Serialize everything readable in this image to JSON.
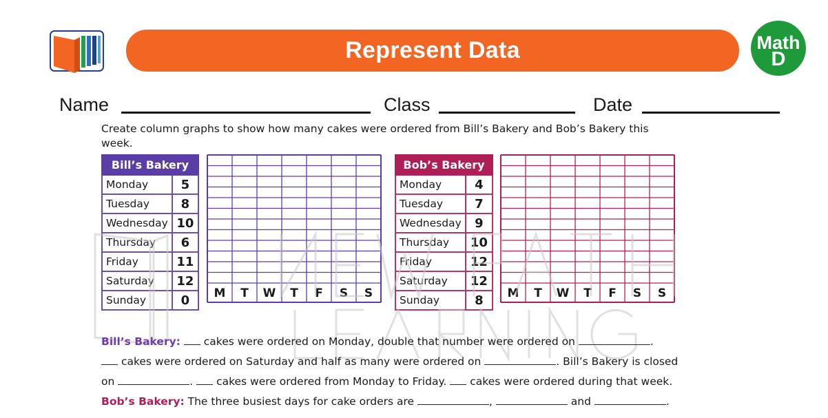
{
  "header": {
    "title": "Represent Data",
    "badge_line1": "Math",
    "badge_line2": "D"
  },
  "info": {
    "name_label": "Name",
    "class_label": "Class",
    "date_label": "Date"
  },
  "instructions": "Create column graphs to show how many cakes were ordered from Bill’s Bakery and Bob’s Bakery this week.",
  "bill": {
    "title": "Bill’s Bakery",
    "rows": [
      {
        "day": "Monday",
        "value": "5"
      },
      {
        "day": "Tuesday",
        "value": "8"
      },
      {
        "day": "Wednesday",
        "value": "10"
      },
      {
        "day": "Thursday",
        "value": "6"
      },
      {
        "day": "Friday",
        "value": "11"
      },
      {
        "day": "Saturday",
        "value": "12"
      },
      {
        "day": "Sunday",
        "value": "0"
      }
    ],
    "grid_days": [
      "M",
      "T",
      "W",
      "T",
      "F",
      "S",
      "S"
    ],
    "color": "#5b3da8"
  },
  "bob": {
    "title": "Bob’s Bakery",
    "rows": [
      {
        "day": "Monday",
        "value": "4"
      },
      {
        "day": "Tuesday",
        "value": "7"
      },
      {
        "day": "Wednesday",
        "value": "9"
      },
      {
        "day": "Thursday",
        "value": "10"
      },
      {
        "day": "Friday",
        "value": "12"
      },
      {
        "day": "Saturday",
        "value": "12"
      },
      {
        "day": "Sunday",
        "value": "8"
      }
    ],
    "grid_days": [
      "M",
      "T",
      "W",
      "T",
      "F",
      "S",
      "S"
    ],
    "color": "#b01e58"
  },
  "questions": {
    "bill_label": "Bill’s Bakery:",
    "l1_a": "cakes were ordered on Monday, double that number were ordered on",
    "l2_a": "cakes were ordered on Saturday and half as many were ordered on",
    "l2_b": ". Bill’s Bakery is closed",
    "l3_a": "on",
    "l3_b": ".",
    "l3_c": "cakes were ordered from Monday to Friday.",
    "l3_d": "cakes were ordered during that week.",
    "bob_label": "Bob’s Bakery:",
    "l4_a": "The three busiest days for cake orders are",
    "l4_b": ",",
    "l4_c": "and",
    "l4_d": "."
  },
  "colors": {
    "title_bar": "#f26522",
    "badge": "#1f9a3a",
    "bill": "#5b3da8",
    "bob": "#b01e58"
  }
}
